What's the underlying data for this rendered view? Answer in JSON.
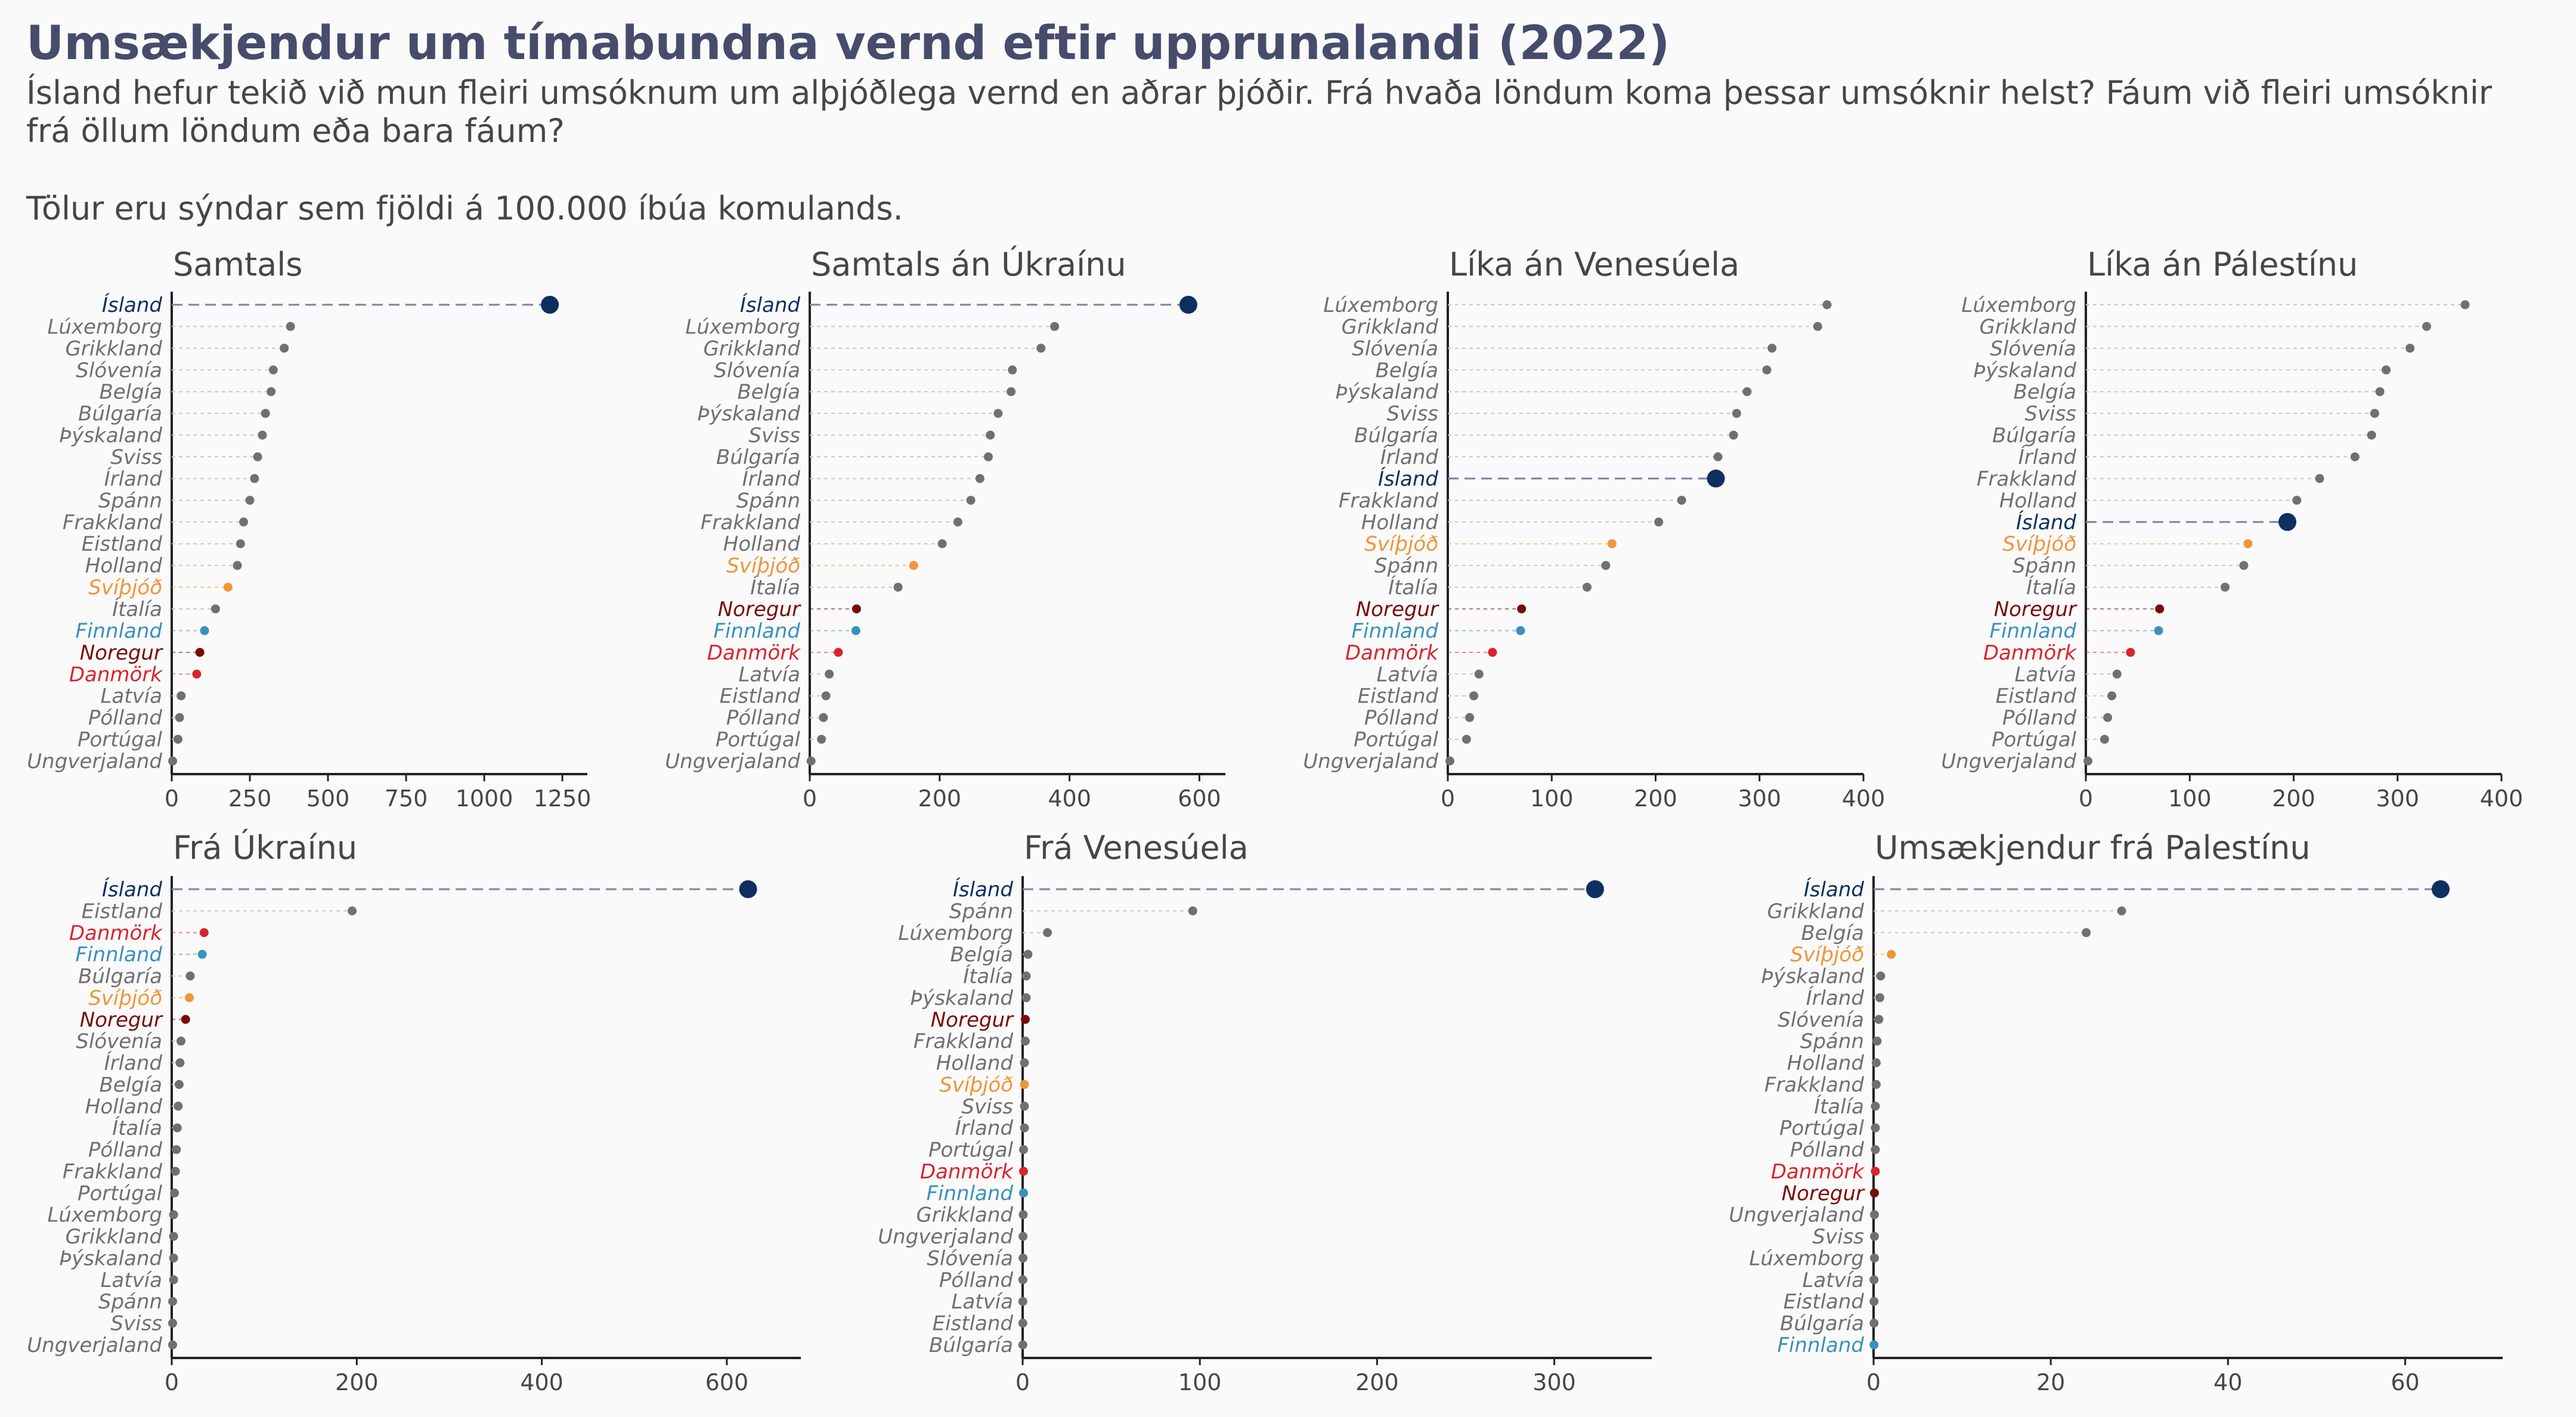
{
  "title": "Umsækjendur um tímabundna vernd eftir upprunalandi (2022)",
  "subtitle": "Ísland hefur tekið við mun fleiri umsóknum um alþjóðlega vernd en aðrar þjóðir. Frá hvaða löndum koma þessar umsóknir helst? Fáum við fleiri umsóknir frá öllum löndum eða bara fáum?",
  "note": "Tölur eru sýndar sem fjöldi á 100.000 íbúa komulands.",
  "colors": {
    "Ísland": "#0f2f61",
    "Svíþjóð": "#f0953a",
    "Finnland": "#3a91bd",
    "Noregur": "#7a0a0a",
    "Danmörk": "#d9242c",
    "other": "#707070",
    "axis": "#222222"
  },
  "chart_data": [
    {
      "type": "dot",
      "title": "Samtals",
      "xlim": [
        0,
        1330
      ],
      "xticks": [
        0,
        250,
        500,
        750,
        1000,
        1250
      ],
      "countries": [
        "Ísland",
        "Lúxemborg",
        "Grikkland",
        "Slóvenía",
        "Belgía",
        "Búlgaría",
        "Þýskaland",
        "Sviss",
        "Írland",
        "Spánn",
        "Frakkland",
        "Eistland",
        "Holland",
        "Svíþjóð",
        "Ítalía",
        "Finnland",
        "Noregur",
        "Danmörk",
        "Latvía",
        "Pólland",
        "Portúgal",
        "Ungverjaland"
      ],
      "values": [
        1210,
        380,
        360,
        325,
        318,
        300,
        290,
        275,
        265,
        250,
        230,
        220,
        210,
        180,
        140,
        105,
        90,
        80,
        30,
        25,
        20,
        3
      ]
    },
    {
      "type": "dot",
      "title": "Samtals án Úkraínu",
      "xlim": [
        0,
        640
      ],
      "xticks": [
        0,
        200,
        400,
        600
      ],
      "countries": [
        "Ísland",
        "Lúxemborg",
        "Grikkland",
        "Slóvenía",
        "Belgía",
        "Þýskaland",
        "Sviss",
        "Búlgaría",
        "Írland",
        "Spánn",
        "Frakkland",
        "Holland",
        "Svíþjóð",
        "Ítalía",
        "Noregur",
        "Finnland",
        "Danmörk",
        "Latvía",
        "Eistland",
        "Pólland",
        "Portúgal",
        "Ungverjaland"
      ],
      "values": [
        583,
        377,
        356,
        312,
        310,
        290,
        278,
        275,
        262,
        248,
        228,
        204,
        160,
        136,
        72,
        71,
        44,
        30,
        25,
        21,
        18,
        2
      ]
    },
    {
      "type": "dot",
      "title": "Líka án Venesúela",
      "xlim": [
        0,
        400
      ],
      "xticks": [
        0,
        100,
        200,
        300,
        400
      ],
      "countries": [
        "Lúxemborg",
        "Grikkland",
        "Slóvenía",
        "Belgía",
        "Þýskaland",
        "Sviss",
        "Búlgaría",
        "Írland",
        "Ísland",
        "Frakkland",
        "Holland",
        "Svíþjóð",
        "Spánn",
        "Ítalía",
        "Noregur",
        "Finnland",
        "Danmörk",
        "Latvía",
        "Eistland",
        "Pólland",
        "Portúgal",
        "Ungverjaland"
      ],
      "values": [
        365,
        356,
        312,
        307,
        288,
        278,
        275,
        260,
        258,
        225,
        203,
        158,
        152,
        134,
        71,
        70,
        43,
        30,
        25,
        21,
        18,
        2
      ]
    },
    {
      "type": "dot",
      "title": "Líka án Pálestínu",
      "xlim": [
        0,
        400
      ],
      "xticks": [
        0,
        100,
        200,
        300,
        400
      ],
      "countries": [
        "Lúxemborg",
        "Grikkland",
        "Slóvenía",
        "Þýskaland",
        "Belgía",
        "Sviss",
        "Búlgaría",
        "Írland",
        "Frakkland",
        "Holland",
        "Ísland",
        "Svíþjóð",
        "Spánn",
        "Ítalía",
        "Noregur",
        "Finnland",
        "Danmörk",
        "Latvía",
        "Eistland",
        "Pólland",
        "Portúgal",
        "Ungverjaland"
      ],
      "values": [
        365,
        328,
        312,
        289,
        283,
        278,
        275,
        259,
        225,
        203,
        194,
        156,
        152,
        134,
        71,
        70,
        43,
        30,
        25,
        21,
        18,
        2
      ]
    },
    {
      "type": "dot",
      "title": "Frá Úkraínu",
      "xlim": [
        0,
        680
      ],
      "xticks": [
        0,
        200,
        400,
        600
      ],
      "countries": [
        "Ísland",
        "Eistland",
        "Danmörk",
        "Finnland",
        "Búlgaría",
        "Svíþjóð",
        "Noregur",
        "Slóvenía",
        "Írland",
        "Belgía",
        "Holland",
        "Ítalía",
        "Pólland",
        "Frakkland",
        "Portúgal",
        "Lúxemborg",
        "Grikkland",
        "Þýskaland",
        "Latvía",
        "Spánn",
        "Sviss",
        "Ungverjaland"
      ],
      "values": [
        623,
        195,
        35,
        33,
        20,
        19,
        15,
        10,
        9,
        8,
        7,
        6,
        5,
        4,
        3,
        2,
        2,
        2,
        2,
        1,
        1,
        1
      ]
    },
    {
      "type": "dot",
      "title": "Frá Venesúela",
      "xlim": [
        0,
        355
      ],
      "xticks": [
        0,
        100,
        200,
        300
      ],
      "countries": [
        "Ísland",
        "Spánn",
        "Lúxemborg",
        "Belgía",
        "Ítalía",
        "Þýskaland",
        "Noregur",
        "Frakkland",
        "Holland",
        "Svíþjóð",
        "Sviss",
        "Írland",
        "Portúgal",
        "Danmörk",
        "Finnland",
        "Grikkland",
        "Ungverjaland",
        "Slóvenía",
        "Pólland",
        "Latvía",
        "Eistland",
        "Búlgaría"
      ],
      "values": [
        323,
        96,
        14,
        3,
        2,
        2,
        1.5,
        1.5,
        1,
        1,
        1,
        1,
        0.5,
        0.5,
        0.5,
        0.3,
        0.2,
        0.2,
        0.1,
        0.1,
        0.1,
        0.1
      ]
    },
    {
      "type": "dot",
      "title": "Umsækjendur frá Palestínu",
      "xlim": [
        0,
        71
      ],
      "xticks": [
        0,
        20,
        40,
        60
      ],
      "countries": [
        "Ísland",
        "Grikkland",
        "Belgía",
        "Svíþjóð",
        "Þýskaland",
        "Írland",
        "Slóvenía",
        "Spánn",
        "Holland",
        "Frakkland",
        "Ítalía",
        "Portúgal",
        "Pólland",
        "Danmörk",
        "Noregur",
        "Ungverjaland",
        "Sviss",
        "Lúxemborg",
        "Latvía",
        "Eistland",
        "Búlgaría",
        "Finnland"
      ],
      "values": [
        64,
        28,
        24,
        2,
        0.8,
        0.7,
        0.6,
        0.4,
        0.3,
        0.3,
        0.2,
        0.2,
        0.2,
        0.2,
        0.1,
        0.1,
        0.1,
        0.1,
        0.05,
        0.05,
        0.05,
        0.05
      ]
    }
  ]
}
